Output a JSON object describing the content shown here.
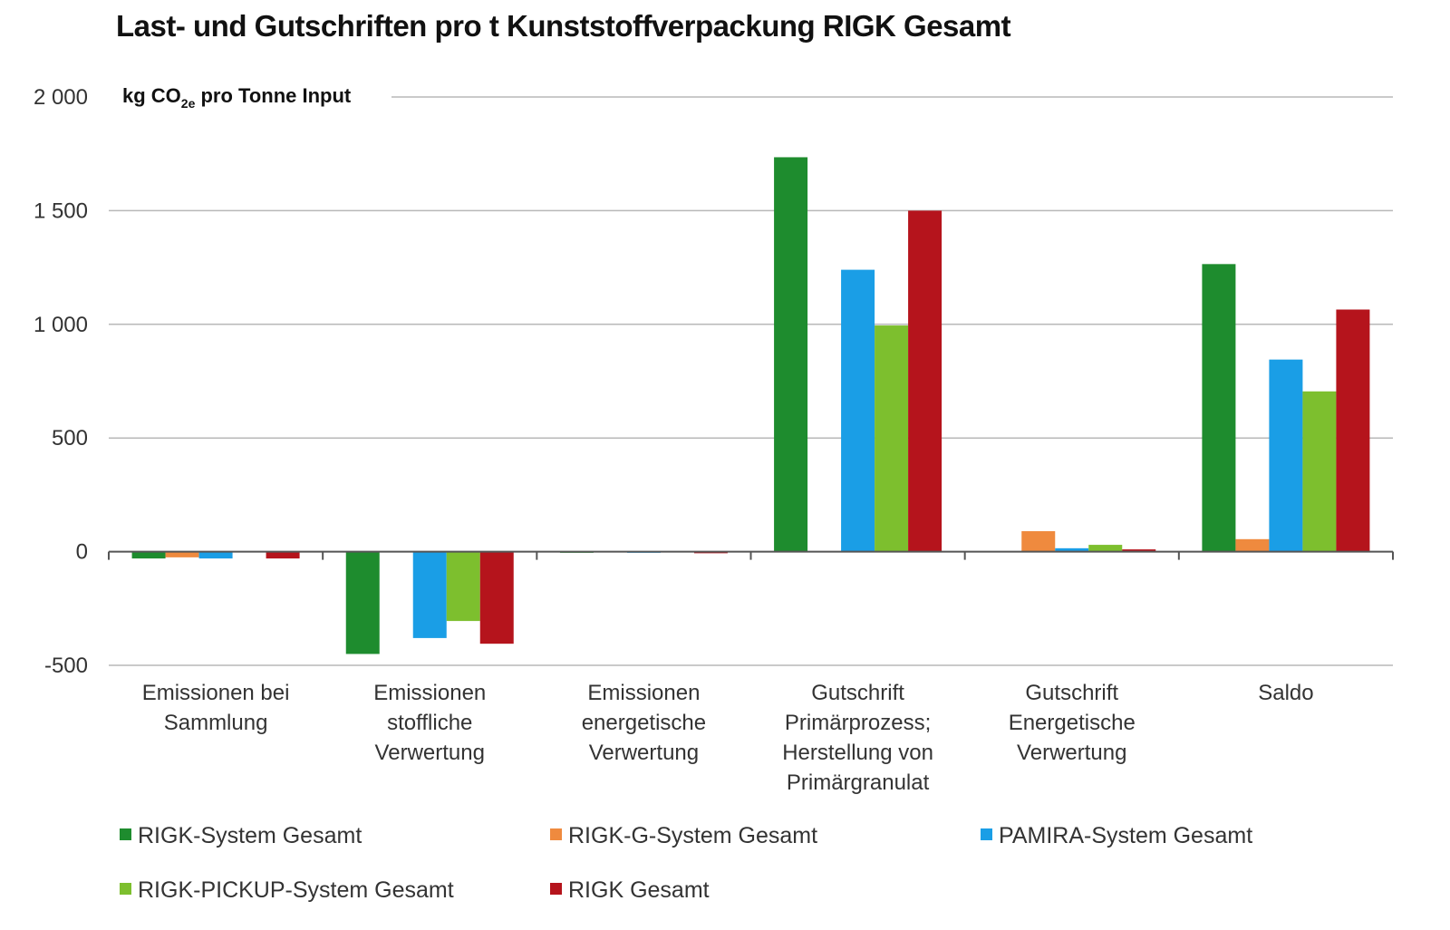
{
  "chart_data": {
    "type": "bar",
    "title": "Last- und Gutschriften pro t Kunststoffverpackung RIGK Gesamt",
    "ylabel": "kg CO",
    "ylabel_sub": "2e",
    "ylabel_suffix": " pro Tonne Input",
    "ylim": [
      -500,
      2000
    ],
    "yticks": [
      -500,
      0,
      500,
      1000,
      1500,
      2000
    ],
    "ytick_labels": [
      "-500",
      "0",
      "500",
      "1 000",
      "1 500",
      "2 000"
    ],
    "grid": true,
    "legend_position": "bottom",
    "categories": [
      [
        "Emissionen bei",
        "Sammlung"
      ],
      [
        "Emissionen",
        "stoffliche",
        "Verwertung"
      ],
      [
        "Emissionen",
        "energetische",
        "Verwertung"
      ],
      [
        "Gutschrift",
        "Primärprozess;",
        "Herstellung von",
        "Primärgranulat"
      ],
      [
        "Gutschrift",
        "Energetische",
        "Verwertung"
      ],
      [
        "Saldo"
      ]
    ],
    "series": [
      {
        "name": "RIGK-System Gesamt",
        "color": "#1e8c2e",
        "values": [
          -30,
          -450,
          -5,
          1735,
          0,
          1265
        ]
      },
      {
        "name": "RIGK-G-System Gesamt",
        "color": "#ef8a3e",
        "values": [
          -25,
          0,
          -3,
          0,
          90,
          55
        ]
      },
      {
        "name": "PAMIRA-System Gesamt",
        "color": "#1a9ee6",
        "values": [
          -30,
          -380,
          -5,
          1240,
          15,
          845
        ]
      },
      {
        "name": "RIGK-PICKUP-System Gesamt",
        "color": "#7dbf2e",
        "values": [
          0,
          -305,
          -3,
          995,
          30,
          705
        ]
      },
      {
        "name": "RIGK Gesamt",
        "color": "#b5141c",
        "values": [
          -30,
          -405,
          -7,
          1500,
          10,
          1065
        ]
      }
    ]
  }
}
